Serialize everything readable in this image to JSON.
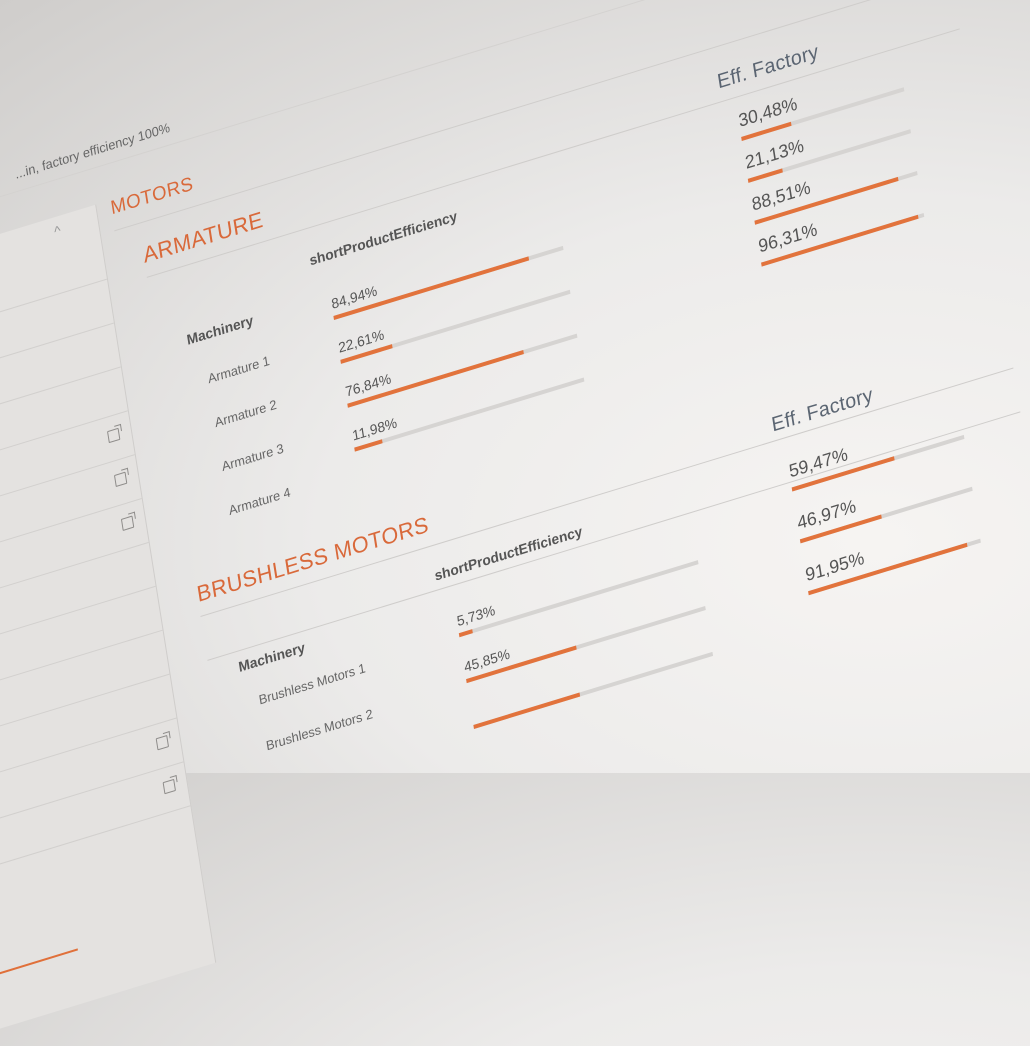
{
  "topbar": {
    "hint": "...in, factory efficiency 100%"
  },
  "page": {
    "title": "MOTORS"
  },
  "armature": {
    "title": "ARMATURE",
    "col_machinery": "Machinery",
    "col_short": "shortProductEfficiency",
    "col_eff": "Eff. Factory",
    "rows": [
      {
        "name": "Armature 1",
        "short": "84,94%",
        "short_val": 84.94,
        "eff": "30,48%",
        "eff_val": 30.48
      },
      {
        "name": "Armature 2",
        "short": "22,61%",
        "short_val": 22.61,
        "eff": "21,13%",
        "eff_val": 21.13
      },
      {
        "name": "Armature 3",
        "short": "76,84%",
        "short_val": 76.84,
        "eff": "88,51%",
        "eff_val": 88.51
      },
      {
        "name": "Armature 4",
        "short": "11,98%",
        "short_val": 11.98,
        "eff": "96,31%",
        "eff_val": 96.31
      }
    ]
  },
  "brushless": {
    "title": "BRUSHLESS MOTORS",
    "col_machinery": "Machinery",
    "col_short": "shortProductEfficiency",
    "col_eff": "Eff. Factory",
    "rows": [
      {
        "name": "Brushless Motors 1",
        "short": "5,73%",
        "short_val": 5.73,
        "eff": "59,47%",
        "eff_val": 59.47
      },
      {
        "name": "Brushless Motors 2",
        "short": "45,85%",
        "short_val": 45.85,
        "eff": "46,97%",
        "eff_val": 46.97
      },
      {
        "name": "",
        "short": "",
        "short_val": 44.37,
        "eff": "91,95%",
        "eff_val": 91.95
      }
    ]
  },
  "icons": {
    "chevron": "chevron-up-icon",
    "external": "external-link-icon"
  },
  "colors": {
    "accent": "#e2733c",
    "title": "#d9693a",
    "track": "#d6d4d2"
  }
}
